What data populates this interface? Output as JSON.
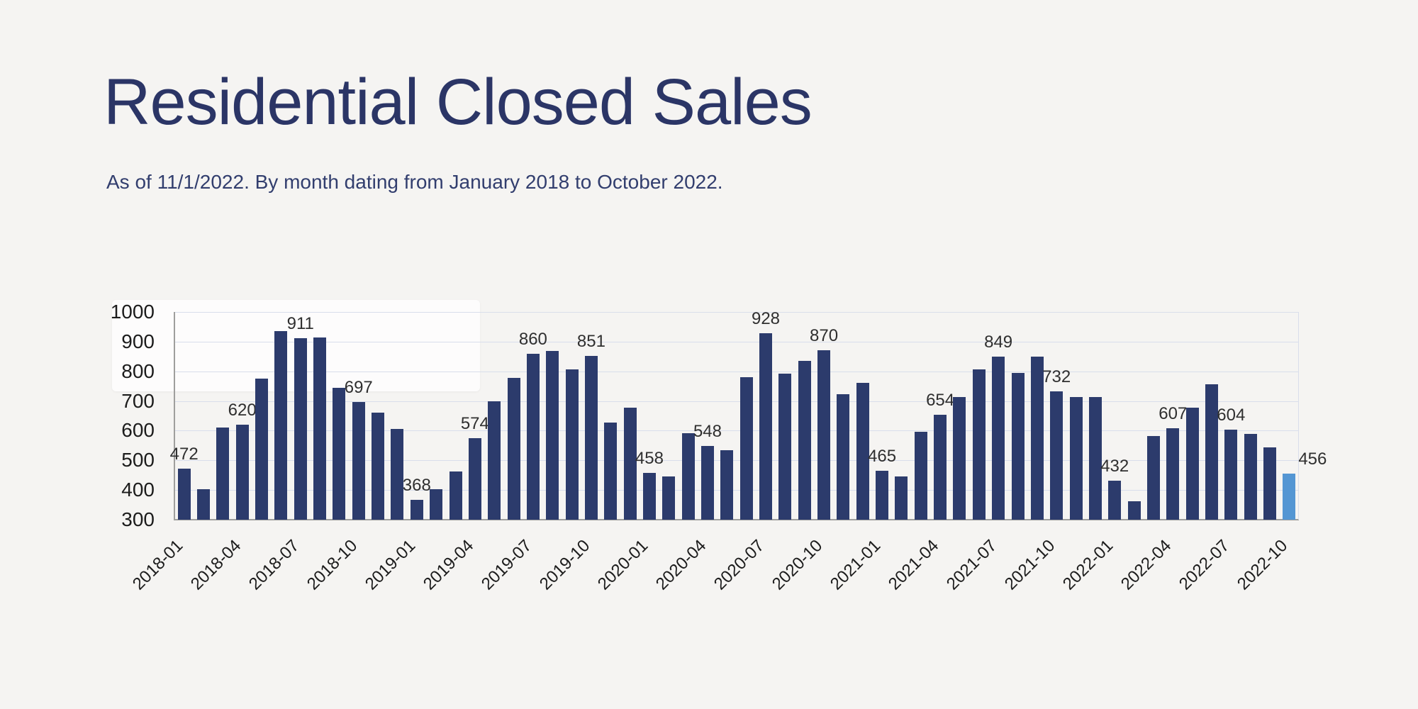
{
  "header": {
    "title": "Residential Closed Sales",
    "subtitle": "As of 11/1/2022. By month dating from January 2018 to October 2022."
  },
  "chart_data": {
    "type": "bar",
    "title": "Residential Closed Sales",
    "subtitle": "As of 11/1/2022. By month dating from January 2018 to October 2022.",
    "xlabel": "",
    "ylabel": "",
    "ylim": [
      300,
      1000
    ],
    "y_ticks": [
      300,
      400,
      500,
      600,
      700,
      800,
      900,
      1000
    ],
    "grid": true,
    "legend": false,
    "bar_color": "#2c3b6c",
    "highlight_color": "#5496d3",
    "highlight_index": 57,
    "value_label_every": 3,
    "x_tick_every": 3,
    "categories": [
      "2018-01",
      "2018-02",
      "2018-03",
      "2018-04",
      "2018-05",
      "2018-06",
      "2018-07",
      "2018-08",
      "2018-09",
      "2018-10",
      "2018-11",
      "2018-12",
      "2019-01",
      "2019-02",
      "2019-03",
      "2019-04",
      "2019-05",
      "2019-06",
      "2019-07",
      "2019-08",
      "2019-09",
      "2019-10",
      "2019-11",
      "2019-12",
      "2020-01",
      "2020-02",
      "2020-03",
      "2020-04",
      "2020-05",
      "2020-06",
      "2020-07",
      "2020-08",
      "2020-09",
      "2020-10",
      "2020-11",
      "2020-12",
      "2021-01",
      "2021-02",
      "2021-03",
      "2021-04",
      "2021-05",
      "2021-06",
      "2021-07",
      "2021-08",
      "2021-09",
      "2021-10",
      "2021-11",
      "2021-12",
      "2022-01",
      "2022-02",
      "2022-03",
      "2022-04",
      "2022-05",
      "2022-06",
      "2022-07",
      "2022-08",
      "2022-09",
      "2022-10"
    ],
    "values": [
      472,
      403,
      610,
      620,
      775,
      936,
      911,
      915,
      745,
      697,
      660,
      605,
      368,
      403,
      463,
      574,
      698,
      778,
      860,
      868,
      806,
      851,
      628,
      677,
      458,
      446,
      592,
      548,
      534,
      780,
      928,
      792,
      836,
      870,
      722,
      762,
      465,
      446,
      596,
      654,
      713,
      806,
      849,
      794,
      850,
      732,
      713,
      713,
      432,
      362,
      582,
      607,
      678,
      757,
      604,
      588,
      544,
      456
    ],
    "labeled_values": [
      472,
      620,
      911,
      697,
      368,
      574,
      860,
      851,
      458,
      548,
      928,
      870,
      465,
      654,
      849,
      732,
      432,
      607,
      604,
      456
    ]
  }
}
